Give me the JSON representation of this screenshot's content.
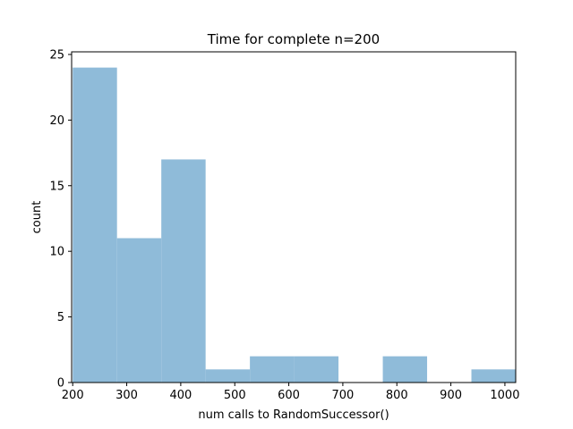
{
  "chart_data": {
    "type": "bar",
    "title": "Time for complete n=200",
    "xlabel": "num calls to RandomSuccessor()",
    "ylabel": "count",
    "xlim": [
      198,
      1020
    ],
    "ylim": [
      0,
      25.2
    ],
    "grid": false,
    "bins": [
      {
        "x0": 200,
        "x1": 282,
        "count": 24
      },
      {
        "x0": 282,
        "x1": 364,
        "count": 11
      },
      {
        "x0": 364,
        "x1": 446,
        "count": 17
      },
      {
        "x0": 446,
        "x1": 528,
        "count": 1
      },
      {
        "x0": 528,
        "x1": 610,
        "count": 2
      },
      {
        "x0": 610,
        "x1": 692,
        "count": 2
      },
      {
        "x0": 692,
        "x1": 774,
        "count": 0
      },
      {
        "x0": 774,
        "x1": 856,
        "count": 2
      },
      {
        "x0": 856,
        "x1": 938,
        "count": 0
      },
      {
        "x0": 938,
        "x1": 1020,
        "count": 1
      }
    ],
    "xticks": [
      200,
      300,
      400,
      500,
      600,
      700,
      800,
      900,
      1000
    ],
    "yticks": [
      0,
      5,
      10,
      15,
      20,
      25
    ],
    "bar_color": "#8fbbd9"
  }
}
